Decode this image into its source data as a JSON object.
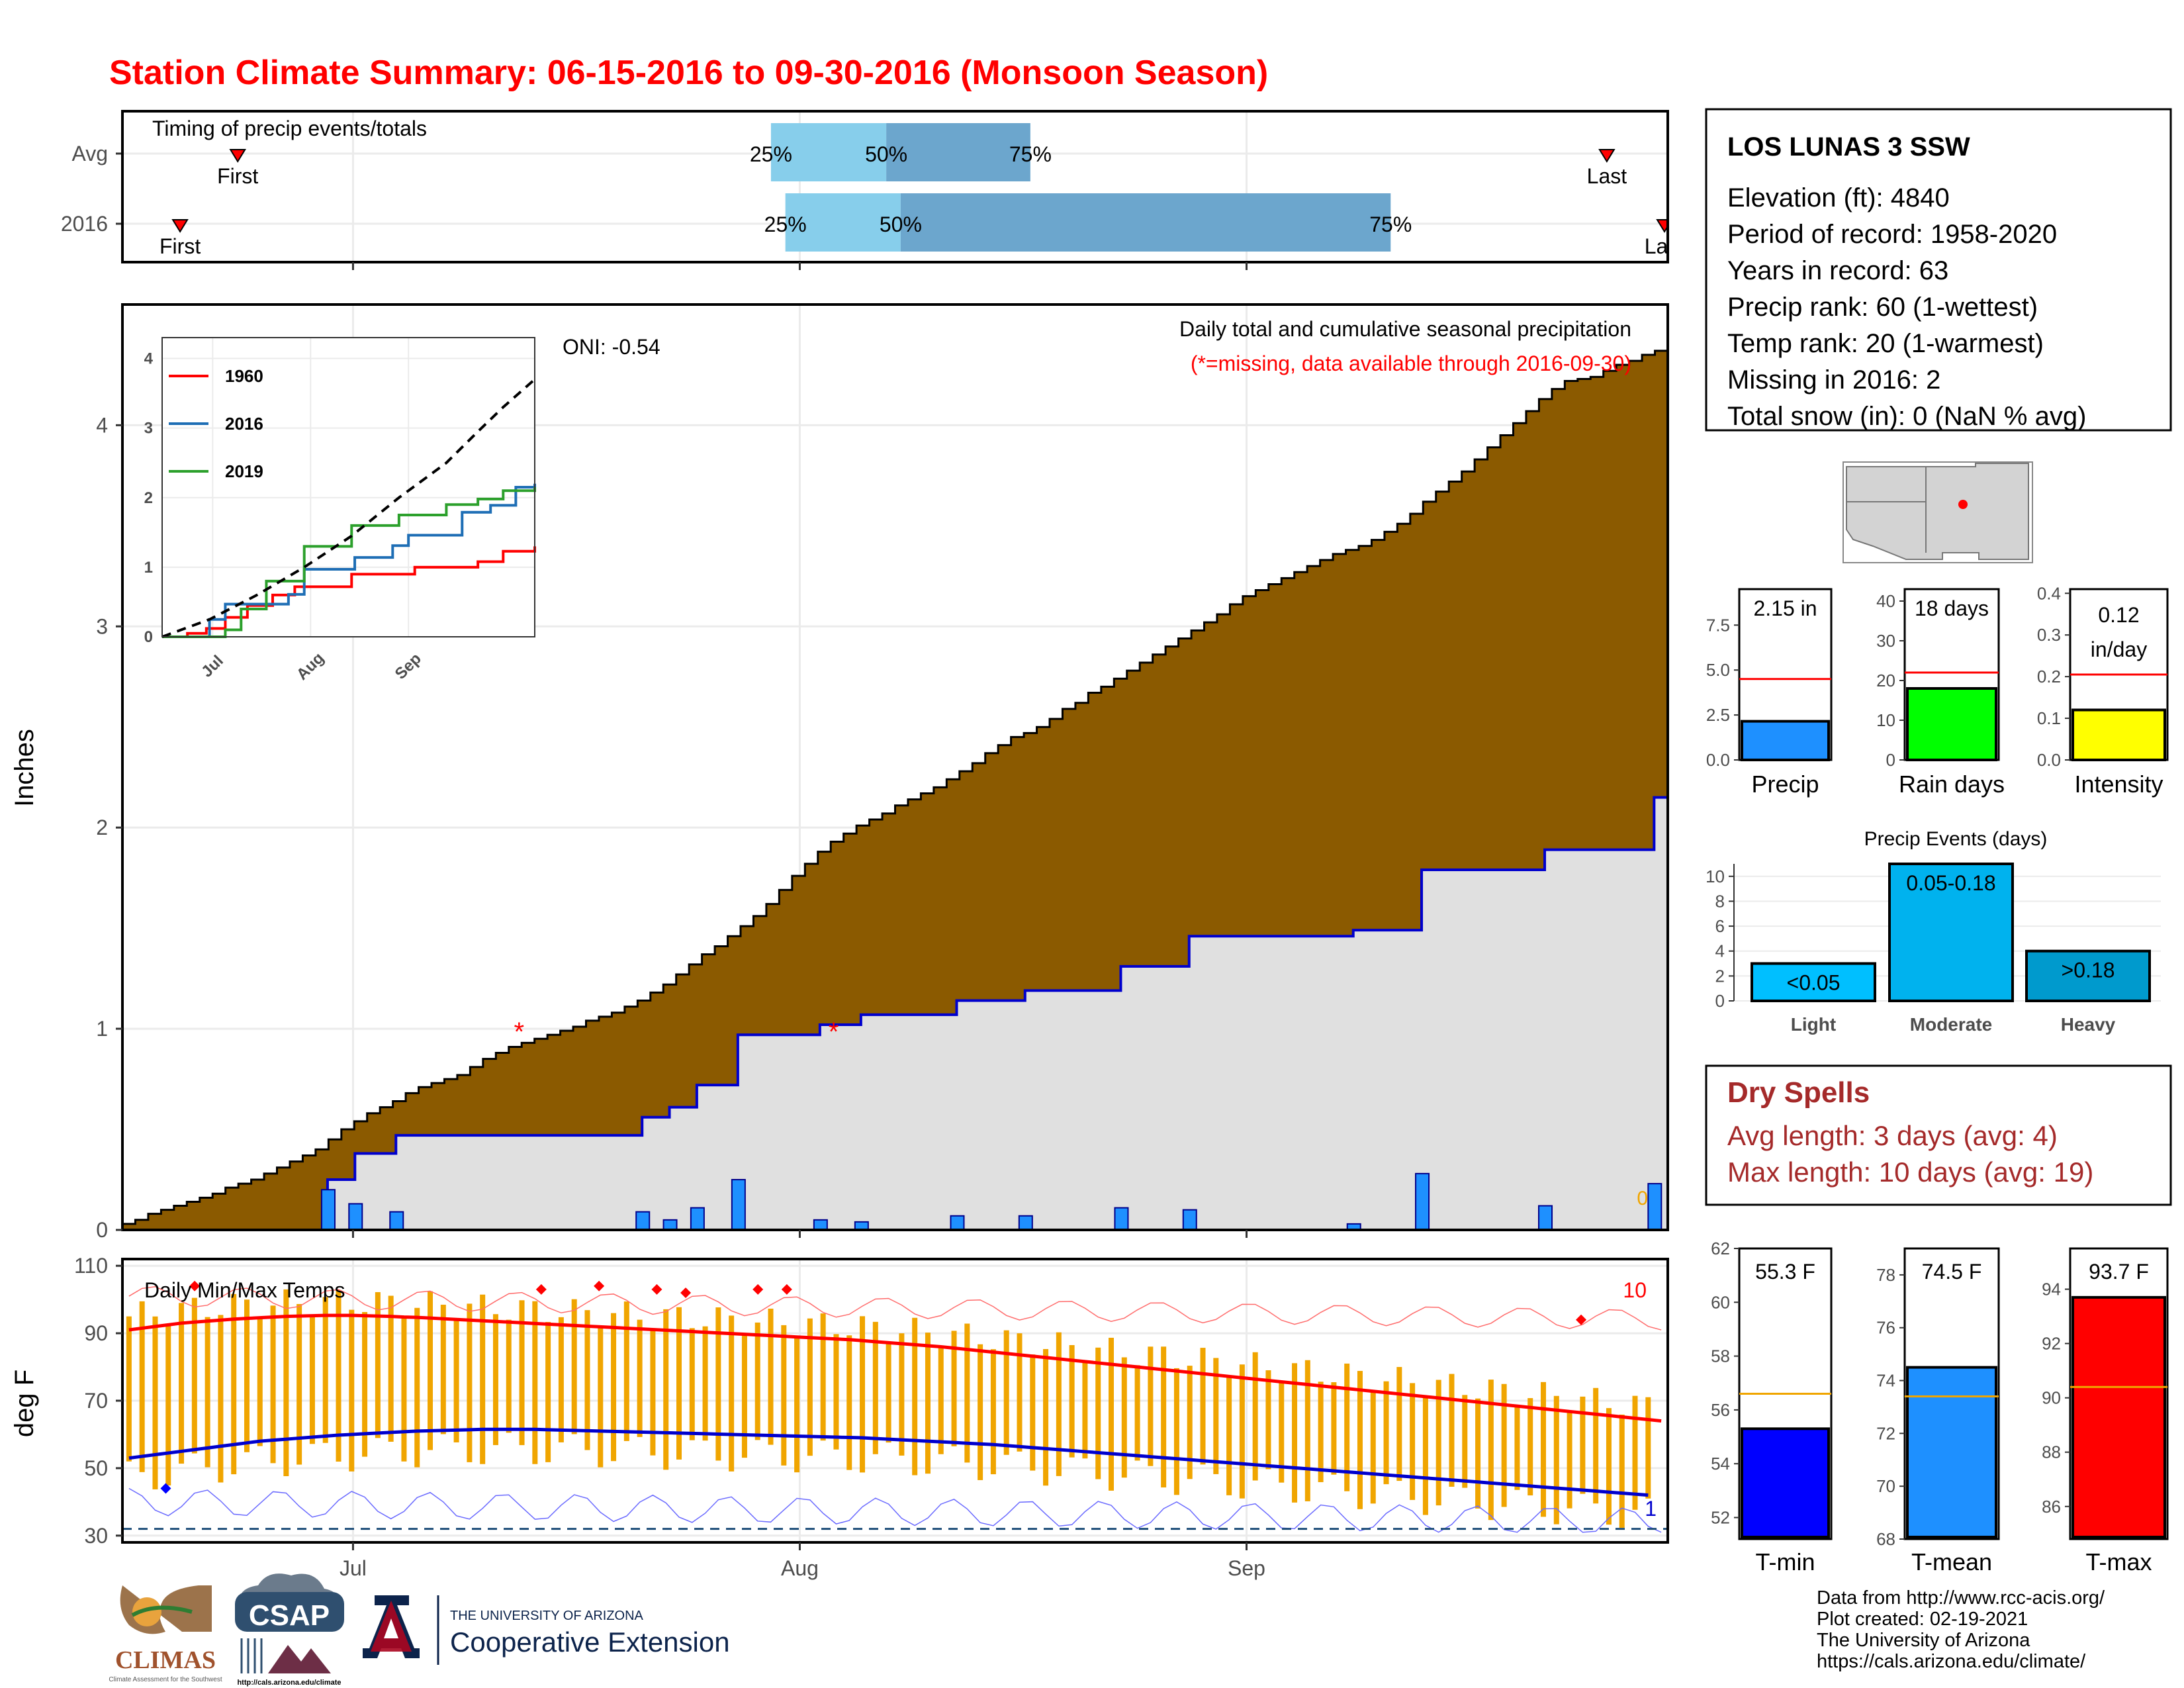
{
  "page": {
    "title": "Station Climate Summary: 06-15-2016 to 09-30-2016 (Monsoon Season)",
    "footer_credits": [
      "Data from http://www.rcc-acis.org/",
      "Plot created: 02-19-2021",
      "The University of Arizona",
      "https://cals.arizona.edu/climate/"
    ],
    "logos": {
      "climas": "CLIMAS",
      "climas_sub": "Climate Assessment for the Southwest",
      "csap": "CSAP",
      "csap_url": "http://cals.arizona.edu/climate",
      "ua_line1": "THE UNIVERSITY OF ARIZONA",
      "ua_line2": "Cooperative Extension"
    },
    "colors": {
      "title": "#ff0000",
      "brown": "#8b5a00",
      "gray_area": "#e0e0e0",
      "blue_bar": "#1e90ff",
      "orange": "#f0a500",
      "q_light": "#87ceeb",
      "q_dark": "#6ca6cd"
    }
  },
  "chart_data": [
    {
      "id": "timing",
      "type": "bar",
      "title": "Timing of precip events/totals",
      "rows": [
        {
          "label": "Avg",
          "first": "06-23",
          "q25": "07-30",
          "q50": "08-07",
          "q75": "08-17",
          "last": "09-26",
          "last_label": "Last",
          "first_label": "First"
        },
        {
          "label": "2016",
          "first": "06-19",
          "q25": "07-31",
          "q50": "08-08",
          "q75": "09-11",
          "last": "09-30",
          "last_label": "Last",
          "first_label": "First"
        }
      ],
      "quantile_labels": [
        "25%",
        "50%",
        "75%"
      ],
      "xlim": [
        "06-15",
        "09-30"
      ]
    },
    {
      "id": "precip",
      "type": "area",
      "ylabel": "Inches",
      "title": "Daily total and cumulative seasonal precipitation",
      "subtitle": "(*=missing, data available through 2016-09-30)",
      "oni": "ONI: -0.54",
      "ylim": [
        0,
        4.6
      ],
      "yticks": [
        0,
        1,
        2,
        3,
        4
      ],
      "xticks": [
        "Jul",
        "Aug",
        "Sep"
      ],
      "snow_label": "0",
      "avg_cumulative": [
        0.03,
        0.05,
        0.08,
        0.1,
        0.12,
        0.14,
        0.16,
        0.18,
        0.21,
        0.23,
        0.25,
        0.28,
        0.31,
        0.34,
        0.37,
        0.4,
        0.45,
        0.5,
        0.54,
        0.58,
        0.61,
        0.64,
        0.68,
        0.71,
        0.73,
        0.75,
        0.77,
        0.81,
        0.85,
        0.88,
        0.91,
        0.93,
        0.95,
        0.97,
        0.99,
        1.01,
        1.04,
        1.06,
        1.08,
        1.11,
        1.14,
        1.18,
        1.22,
        1.27,
        1.32,
        1.37,
        1.41,
        1.46,
        1.51,
        1.56,
        1.62,
        1.69,
        1.76,
        1.82,
        1.88,
        1.93,
        1.97,
        2.01,
        2.04,
        2.07,
        2.11,
        2.14,
        2.17,
        2.2,
        2.24,
        2.28,
        2.32,
        2.37,
        2.41,
        2.45,
        2.47,
        2.5,
        2.54,
        2.59,
        2.62,
        2.67,
        2.7,
        2.74,
        2.78,
        2.82,
        2.86,
        2.9,
        2.94,
        2.98,
        3.02,
        3.06,
        3.11,
        3.15,
        3.18,
        3.21,
        3.24,
        3.27,
        3.3,
        3.33,
        3.36,
        3.38,
        3.4,
        3.43,
        3.47,
        3.51,
        3.56,
        3.62,
        3.67,
        3.72,
        3.77,
        3.83,
        3.89,
        3.95,
        4.01,
        4.07,
        4.13,
        4.18,
        4.22,
        4.23,
        4.24,
        4.27,
        4.3,
        4.32,
        4.35,
        4.37
      ],
      "obs_cumulative_steps": [
        {
          "day": 0,
          "value": 0.0
        },
        {
          "day": 15,
          "value": 0.25
        },
        {
          "day": 17,
          "value": 0.38
        },
        {
          "day": 20,
          "value": 0.47
        },
        {
          "day": 38,
          "value": 0.56
        },
        {
          "day": 40,
          "value": 0.61
        },
        {
          "day": 42,
          "value": 0.72
        },
        {
          "day": 45,
          "value": 0.97
        },
        {
          "day": 51,
          "value": 1.02
        },
        {
          "day": 54,
          "value": 1.07
        },
        {
          "day": 61,
          "value": 1.14
        },
        {
          "day": 66,
          "value": 1.19
        },
        {
          "day": 73,
          "value": 1.31
        },
        {
          "day": 78,
          "value": 1.46
        },
        {
          "day": 90,
          "value": 1.49
        },
        {
          "day": 95,
          "value": 1.79
        },
        {
          "day": 104,
          "value": 1.89
        },
        {
          "day": 112,
          "value": 2.15
        }
      ],
      "daily_bars": [
        {
          "day": 15,
          "value": 0.2
        },
        {
          "day": 17,
          "value": 0.13
        },
        {
          "day": 20,
          "value": 0.09
        },
        {
          "day": 38,
          "value": 0.09
        },
        {
          "day": 40,
          "value": 0.05
        },
        {
          "day": 42,
          "value": 0.11
        },
        {
          "day": 45,
          "value": 0.25
        },
        {
          "day": 51,
          "value": 0.05
        },
        {
          "day": 54,
          "value": 0.04
        },
        {
          "day": 61,
          "value": 0.07
        },
        {
          "day": 66,
          "value": 0.07
        },
        {
          "day": 73,
          "value": 0.11
        },
        {
          "day": 78,
          "value": 0.1
        },
        {
          "day": 90,
          "value": 0.03
        },
        {
          "day": 95,
          "value": 0.28
        },
        {
          "day": 104,
          "value": 0.12
        },
        {
          "day": 112,
          "value": 0.23
        }
      ],
      "missing_points": [
        {
          "day": 29,
          "value": 1.0
        },
        {
          "day": 52,
          "value": 1.0
        }
      ]
    },
    {
      "id": "inset",
      "type": "line",
      "ylim": [
        0,
        4.3
      ],
      "yticks": [
        0,
        1,
        2,
        3,
        4
      ],
      "xticks": [
        "Jul",
        "Aug",
        "Sep"
      ],
      "series": [
        {
          "name": "1960",
          "color": "#ff0000",
          "points": [
            [
              0,
              0
            ],
            [
              8,
              0.05
            ],
            [
              14,
              0.12
            ],
            [
              20,
              0.28
            ],
            [
              27,
              0.45
            ],
            [
              35,
              0.6
            ],
            [
              42,
              0.72
            ],
            [
              60,
              0.9
            ],
            [
              80,
              1.0
            ],
            [
              100,
              1.08
            ],
            [
              108,
              1.23
            ],
            [
              118,
              1.3
            ]
          ]
        },
        {
          "name": "2016",
          "color": "#1e6eb5",
          "points": [
            [
              0,
              0
            ],
            [
              15,
              0.25
            ],
            [
              20,
              0.47
            ],
            [
              40,
              0.61
            ],
            [
              45,
              0.97
            ],
            [
              61,
              1.14
            ],
            [
              73,
              1.31
            ],
            [
              78,
              1.46
            ],
            [
              95,
              1.79
            ],
            [
              104,
              1.89
            ],
            [
              112,
              2.15
            ],
            [
              118,
              2.2
            ]
          ]
        },
        {
          "name": "2019",
          "color": "#2ca02c",
          "points": [
            [
              0,
              0
            ],
            [
              20,
              0.1
            ],
            [
              25,
              0.4
            ],
            [
              33,
              0.8
            ],
            [
              45,
              1.3
            ],
            [
              60,
              1.6
            ],
            [
              75,
              1.75
            ],
            [
              90,
              1.9
            ],
            [
              100,
              1.98
            ],
            [
              108,
              2.1
            ],
            [
              118,
              2.15
            ]
          ]
        }
      ],
      "avg_line": [
        [
          0,
          0
        ],
        [
          15,
          0.25
        ],
        [
          30,
          0.6
        ],
        [
          45,
          1.0
        ],
        [
          60,
          1.45
        ],
        [
          75,
          2.0
        ],
        [
          90,
          2.5
        ],
        [
          100,
          2.95
        ],
        [
          108,
          3.3
        ],
        [
          118,
          3.7
        ]
      ]
    },
    {
      "id": "temps",
      "type": "line",
      "title": "Daily Min/Max Temps",
      "ylabel": "deg F",
      "ylim": [
        28,
        112
      ],
      "yticks": [
        30,
        50,
        70,
        90,
        110
      ],
      "xticks": [
        "Jul",
        "Aug",
        "Sep"
      ],
      "count_label_top": "10",
      "count_label_bottom": "1",
      "dashed_line": 32,
      "avg_max": [
        91,
        91.5,
        92,
        92.5,
        93,
        93.3,
        93.6,
        93.9,
        94.2,
        94.4,
        94.6,
        94.8,
        95,
        95.1,
        95.2,
        95.3,
        95.3,
        95.3,
        95.2,
        95.1,
        95,
        94.8,
        94.7,
        94.5,
        94.3,
        94.1,
        93.9,
        93.7,
        93.5,
        93.3,
        93.1,
        92.9,
        92.7,
        92.5,
        92.3,
        92.1,
        91.9,
        91.7,
        91.5,
        91.3,
        91.1,
        90.9,
        90.7,
        90.5,
        90.3,
        90.1,
        89.9,
        89.7,
        89.5,
        89.3,
        89.1,
        88.9,
        88.7,
        88.5,
        88.3,
        88.1,
        87.8,
        87.5,
        87.2,
        86.9,
        86.6,
        86.3,
        86,
        85.6,
        85.2,
        84.8,
        84.4,
        84,
        83.6,
        83.2,
        82.8,
        82.4,
        82,
        81.6,
        81.2,
        80.8,
        80.4,
        80,
        79.6,
        79.2,
        78.8,
        78.4,
        78,
        77.6,
        77.2,
        76.8,
        76.4,
        76,
        75.6,
        75.2,
        74.8,
        74.4,
        74,
        73.6,
        73.2,
        72.8,
        72.4,
        72,
        71.6,
        71.2,
        70.8,
        70.4,
        70,
        69.6,
        69.2,
        68.8,
        68.4,
        68,
        67.6,
        67.2,
        66.8,
        66.4,
        66,
        65.6,
        65.2,
        64.8,
        64.4,
        64
      ],
      "avg_min": [
        53,
        53.5,
        54,
        54.5,
        55,
        55.5,
        56,
        56.5,
        57,
        57.5,
        58,
        58.3,
        58.6,
        58.9,
        59.2,
        59.5,
        59.8,
        60,
        60.2,
        60.4,
        60.6,
        60.8,
        61,
        61.1,
        61.2,
        61.3,
        61.4,
        61.5,
        61.5,
        61.5,
        61.5,
        61.5,
        61.4,
        61.3,
        61.2,
        61.1,
        61,
        60.9,
        60.8,
        60.7,
        60.6,
        60.5,
        60.4,
        60.3,
        60.2,
        60.1,
        60,
        59.9,
        59.8,
        59.7,
        59.6,
        59.5,
        59.4,
        59.3,
        59.2,
        59.1,
        59,
        58.8,
        58.6,
        58.4,
        58.2,
        58,
        57.8,
        57.6,
        57.4,
        57.2,
        57,
        56.7,
        56.4,
        56.1,
        55.8,
        55.5,
        55.2,
        54.9,
        54.6,
        54.3,
        54,
        53.7,
        53.4,
        53.1,
        52.8,
        52.5,
        52.2,
        51.9,
        51.6,
        51.3,
        51,
        50.7,
        50.4,
        50.1,
        49.8,
        49.5,
        49.2,
        48.9,
        48.6,
        48.3,
        48,
        47.7,
        47.4,
        47.1,
        46.8,
        46.5,
        46.2,
        45.9,
        45.6,
        45.3,
        45,
        44.7,
        44.4,
        44.1,
        43.8,
        43.5,
        43.2,
        42.9,
        42.6,
        42.3,
        42
      ],
      "record_high_markers": [
        {
          "day": 5,
          "value": 104
        },
        {
          "day": 29,
          "value": 103
        },
        {
          "day": 33,
          "value": 104
        },
        {
          "day": 37,
          "value": 103
        },
        {
          "day": 39,
          "value": 102
        },
        {
          "day": 44,
          "value": 103
        },
        {
          "day": 46,
          "value": 103
        },
        {
          "day": 101,
          "value": 94
        },
        {
          "day": 113,
          "value": 92
        }
      ],
      "record_low_markers": [
        {
          "day": 3,
          "value": 44
        }
      ]
    },
    {
      "id": "precip_bars",
      "type": "bar",
      "panels": [
        {
          "name": "Precip",
          "value": 2.15,
          "avg": 4.5,
          "label": "2.15 in",
          "ylim": [
            0,
            9.5
          ],
          "yticks": [
            "0.0",
            "2.5",
            "5.0",
            "7.5"
          ],
          "tick_values": [
            0,
            2.5,
            5.0,
            7.5
          ],
          "color": "#1e90ff"
        },
        {
          "name": "Rain days",
          "value": 18,
          "avg": 22,
          "label": "18 days",
          "ylim": [
            0,
            43
          ],
          "yticks": [
            "0",
            "10",
            "20",
            "30",
            "40"
          ],
          "tick_values": [
            0,
            10,
            20,
            30,
            40
          ],
          "color": "#00ff00"
        },
        {
          "name": "Intensity",
          "value": 0.12,
          "avg": 0.205,
          "label": "0.12 in/day",
          "label_lines": [
            "0.12",
            "in/day"
          ],
          "ylim": [
            0,
            0.41
          ],
          "yticks": [
            "0.0",
            "0.1",
            "0.2",
            "0.3",
            "0.4"
          ],
          "tick_values": [
            0,
            0.1,
            0.2,
            0.3,
            0.4
          ],
          "color": "#ffff00"
        }
      ]
    },
    {
      "id": "events",
      "type": "bar",
      "title": "Precip Events (days)",
      "categories": [
        "Light",
        "Moderate",
        "Heavy"
      ],
      "values": [
        3,
        11,
        4
      ],
      "labels": [
        "<0.05",
        "0.05-0.18",
        ">0.18"
      ],
      "colors": [
        "#00bfff",
        "#00b2ee",
        "#009acd"
      ],
      "ylim": [
        0,
        11
      ],
      "yticks": [
        0,
        2,
        4,
        6,
        8,
        10
      ]
    },
    {
      "id": "temp_bars",
      "type": "bar",
      "panels": [
        {
          "name": "T-min",
          "value": 55.3,
          "avg": 56.6,
          "label": "55.3 F",
          "ylim": [
            51.2,
            62
          ],
          "yticks": [
            52,
            54,
            56,
            58,
            60,
            62
          ],
          "color": "#0000ff"
        },
        {
          "name": "T-mean",
          "value": 74.5,
          "avg": 73.4,
          "label": "74.5 F",
          "ylim": [
            68,
            79
          ],
          "yticks": [
            68,
            70,
            72,
            74,
            76,
            78
          ],
          "color": "#1e90ff"
        },
        {
          "name": "T-max",
          "value": 93.7,
          "avg": 90.4,
          "label": "93.7 F",
          "ylim": [
            84.8,
            95.5
          ],
          "yticks": [
            86,
            88,
            90,
            92,
            94
          ],
          "color": "#ff0000"
        }
      ]
    }
  ],
  "station": {
    "name": "LOS LUNAS 3 SSW",
    "lines": [
      "Elevation (ft): 4840",
      "Period of record: 1958-2020",
      "Years in record: 63",
      "Precip rank: 60 (1-wettest)",
      "Temp rank: 20 (1-warmest)",
      "Missing in 2016: 2",
      "Total snow (in): 0 (NaN % avg)"
    ]
  },
  "dry_spells": {
    "title": "Dry Spells",
    "avg_length": "Avg length: 3 days (avg: 4)",
    "max_length": "Max length: 10 days (avg: 19)"
  }
}
